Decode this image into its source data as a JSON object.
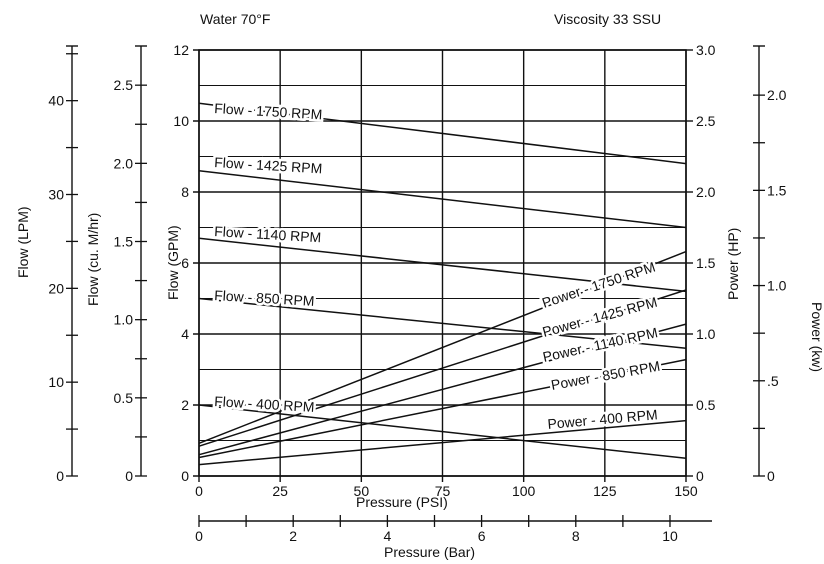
{
  "header": {
    "left": "Water 70°F",
    "right": "Viscosity 33 SSU"
  },
  "chart_data": {
    "type": "line",
    "x": {
      "label": "Pressure (PSI)",
      "range": [
        0,
        150
      ],
      "ticks": [
        "0",
        "25",
        "50",
        "75",
        "100",
        "125",
        "150"
      ]
    },
    "x2": {
      "label": "Pressure (Bar)",
      "range": [
        0,
        10.34
      ],
      "ticks": [
        "0",
        "2",
        "4",
        "6",
        "8",
        "10"
      ]
    },
    "y_left": {
      "label": "Flow (GPM)",
      "range": [
        0,
        12
      ],
      "ticks": [
        "0",
        "2",
        "4",
        "6",
        "8",
        "10",
        "12"
      ]
    },
    "y_left2": {
      "label": "Flow (cu. M/hr)",
      "range": [
        0,
        2.725
      ],
      "ticks": [
        "0",
        "0.5",
        "1.0",
        "1.5",
        "2.0",
        "2.5"
      ]
    },
    "y_left3": {
      "label": "Flow (LPM)",
      "range": [
        0,
        45.4
      ],
      "ticks": [
        "0",
        "10",
        "20",
        "30",
        "40"
      ]
    },
    "y_right": {
      "label": "Power (HP)",
      "range": [
        0,
        3.0
      ],
      "ticks": [
        "0",
        "0.5",
        "1.0",
        "1.5",
        "2.0",
        "2.5",
        "3.0"
      ]
    },
    "y_right2": {
      "label": "Power (kw)",
      "range": [
        0,
        2.237
      ],
      "ticks": [
        "0",
        ".5",
        "1.0",
        "1.5",
        "2.0"
      ]
    },
    "grid": true,
    "series": [
      {
        "name": "Flow - 1750 RPM",
        "axis": "GPM",
        "x": [
          0,
          150
        ],
        "y": [
          10.5,
          8.8
        ]
      },
      {
        "name": "Flow - 1425 RPM",
        "axis": "GPM",
        "x": [
          0,
          150
        ],
        "y": [
          8.6,
          7.0
        ]
      },
      {
        "name": "Flow - 1140 RPM",
        "axis": "GPM",
        "x": [
          0,
          150
        ],
        "y": [
          6.7,
          5.2
        ]
      },
      {
        "name": "Flow - 850 RPM",
        "axis": "GPM",
        "x": [
          0,
          150
        ],
        "y": [
          5.0,
          3.6
        ]
      },
      {
        "name": "Flow - 400 RPM",
        "axis": "GPM",
        "x": [
          0,
          150
        ],
        "y": [
          2.0,
          0.5
        ]
      },
      {
        "name": "Power - 1750 RPM",
        "axis": "HP",
        "x": [
          0,
          150
        ],
        "y": [
          0.23,
          1.58
        ]
      },
      {
        "name": "Power - 1425 RPM",
        "axis": "HP",
        "x": [
          0,
          150
        ],
        "y": [
          0.21,
          1.31
        ]
      },
      {
        "name": "Power - 1140 RPM",
        "axis": "HP",
        "x": [
          0,
          150
        ],
        "y": [
          0.15,
          1.07
        ]
      },
      {
        "name": "Power - 850 RPM",
        "axis": "HP",
        "x": [
          0,
          150
        ],
        "y": [
          0.13,
          0.82
        ]
      },
      {
        "name": "Power - 400 RPM",
        "axis": "HP",
        "x": [
          0,
          150
        ],
        "y": [
          0.08,
          0.39
        ]
      }
    ]
  }
}
